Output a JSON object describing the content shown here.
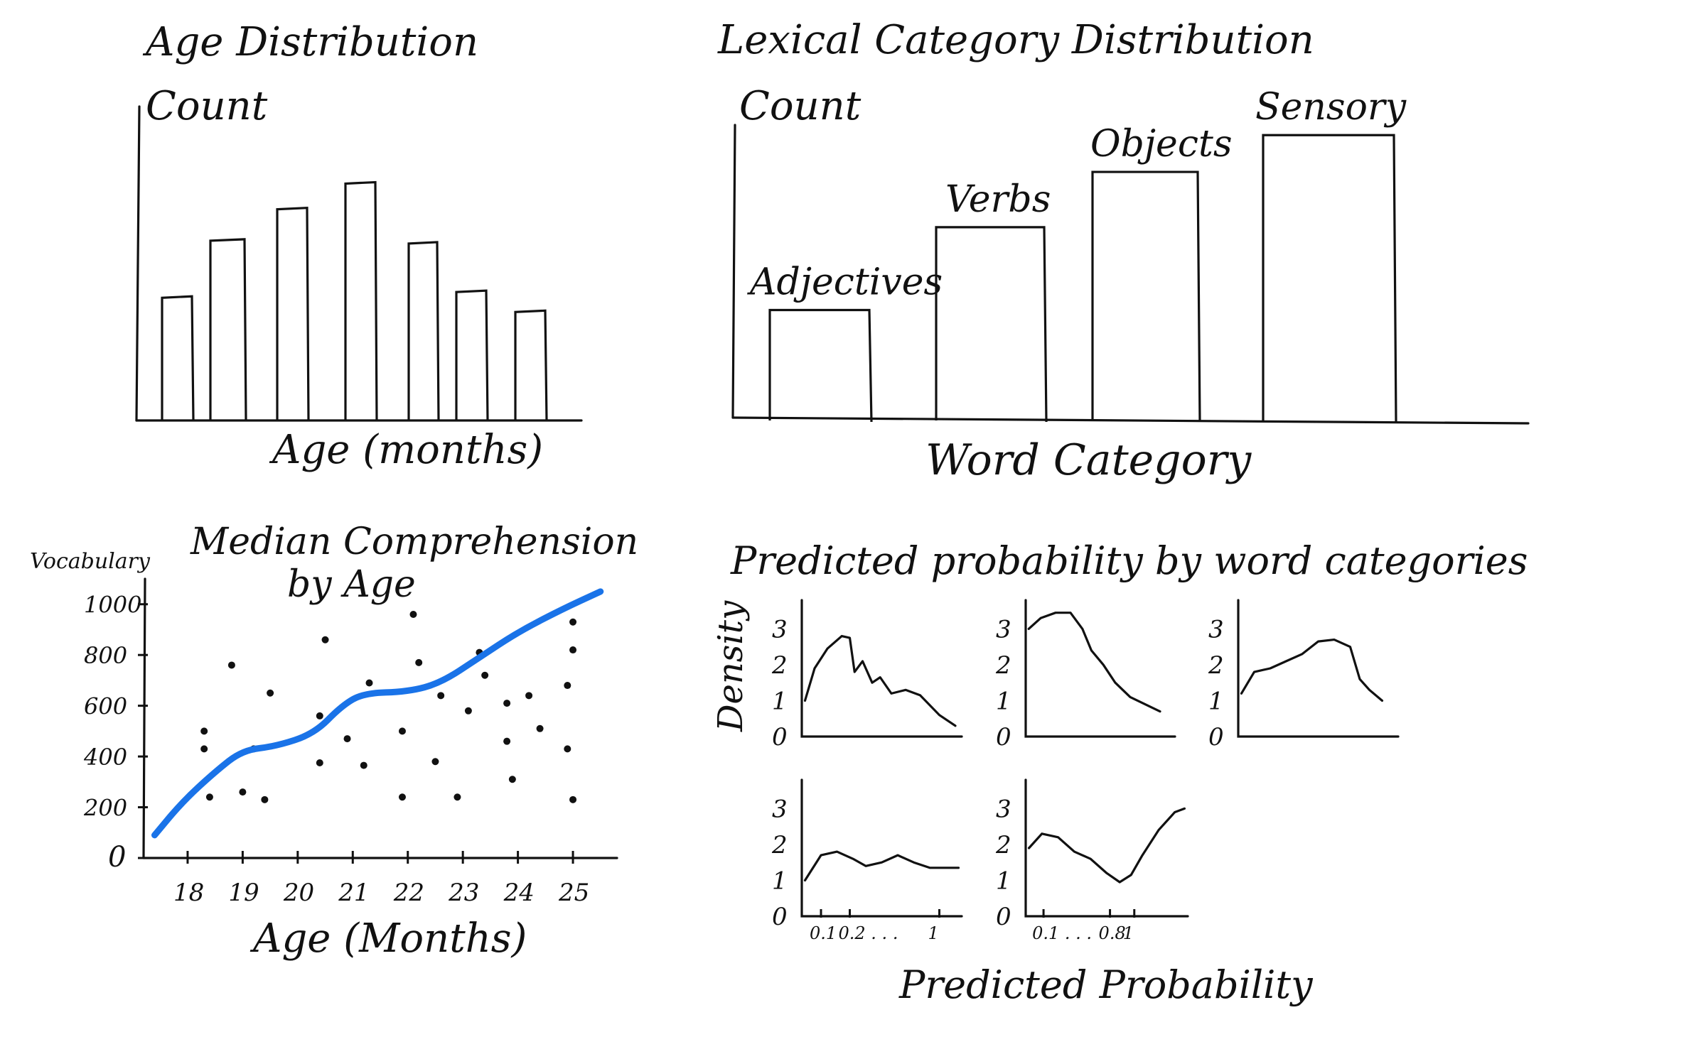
{
  "colors": {
    "ink": "#111111",
    "trend": "#1a73e8"
  },
  "chart_data": [
    {
      "id": "age",
      "type": "bar",
      "title": "Age Distribution",
      "ylabel": "Count",
      "xlabel": "Age (months)",
      "categories": [
        "",
        "",
        "",
        "",
        "",
        "",
        ""
      ],
      "values": [
        43,
        63,
        74,
        83,
        62,
        45,
        38
      ],
      "ylim": [
        0,
        110
      ]
    },
    {
      "id": "lexical",
      "type": "bar",
      "title": "Lexical Category Distribution",
      "ylabel": "Count",
      "xlabel": "Word Category",
      "categories": [
        "Adjectives",
        "Verbs",
        "Objects",
        "Sensory"
      ],
      "values": [
        36,
        63,
        81,
        93
      ],
      "ylim": [
        0,
        100
      ]
    },
    {
      "id": "median",
      "type": "scatter",
      "title": "Median Comprehension\nby Age",
      "ylabel": "Vocabulary",
      "xlabel": "Age (Months)",
      "xticks": [
        18,
        19,
        20,
        21,
        22,
        23,
        24,
        25
      ],
      "yticks": [
        0,
        200,
        400,
        600,
        800,
        1000
      ],
      "xlim": [
        17.2,
        25.8
      ],
      "ylim": [
        0,
        1100
      ],
      "points": [
        [
          18.3,
          430
        ],
        [
          18.3,
          500
        ],
        [
          18.4,
          240
        ],
        [
          18.8,
          760
        ],
        [
          19.0,
          260
        ],
        [
          19.2,
          430
        ],
        [
          19.4,
          230
        ],
        [
          19.5,
          650
        ],
        [
          20.4,
          375
        ],
        [
          20.4,
          560
        ],
        [
          20.5,
          860
        ],
        [
          20.9,
          470
        ],
        [
          21.2,
          365
        ],
        [
          21.3,
          690
        ],
        [
          21.9,
          240
        ],
        [
          21.9,
          500
        ],
        [
          22.1,
          960
        ],
        [
          22.2,
          770
        ],
        [
          22.5,
          380
        ],
        [
          22.6,
          640
        ],
        [
          22.9,
          240
        ],
        [
          23.1,
          580
        ],
        [
          23.3,
          810
        ],
        [
          23.4,
          720
        ],
        [
          23.8,
          610
        ],
        [
          23.8,
          460
        ],
        [
          23.9,
          310
        ],
        [
          24.2,
          640
        ],
        [
          24.4,
          510
        ],
        [
          24.9,
          430
        ],
        [
          25.0,
          230
        ],
        [
          24.9,
          680
        ],
        [
          25.0,
          820
        ],
        [
          25.0,
          930
        ]
      ],
      "trend": [
        [
          17.4,
          90
        ],
        [
          17.9,
          220
        ],
        [
          18.5,
          340
        ],
        [
          19.0,
          425
        ],
        [
          19.6,
          440
        ],
        [
          20.3,
          490
        ],
        [
          20.8,
          600
        ],
        [
          21.2,
          650
        ],
        [
          22.0,
          655
        ],
        [
          22.6,
          690
        ],
        [
          23.3,
          790
        ],
        [
          24.0,
          890
        ],
        [
          24.8,
          980
        ],
        [
          25.5,
          1050
        ]
      ]
    },
    {
      "id": "predicted",
      "type": "line",
      "title": "Predicted probability by word categories",
      "ylabel": "Density",
      "xlabel": "Predicted Probability",
      "yticks": [
        "0",
        "1",
        "2",
        "3"
      ],
      "xticks_panel4": [
        "0.1",
        "0.2 . . .",
        "1"
      ],
      "xticks_panel5": [
        "0.1 . . .",
        "0.8",
        "1"
      ],
      "ylim": [
        0,
        3.8
      ],
      "xlim": [
        0,
        1
      ],
      "series": [
        {
          "values": [
            [
              0.02,
              1.0
            ],
            [
              0.08,
              1.9
            ],
            [
              0.16,
              2.45
            ],
            [
              0.25,
              2.8
            ],
            [
              0.3,
              2.75
            ],
            [
              0.33,
              1.8
            ],
            [
              0.38,
              2.1
            ],
            [
              0.44,
              1.5
            ],
            [
              0.49,
              1.65
            ],
            [
              0.56,
              1.2
            ],
            [
              0.65,
              1.3
            ],
            [
              0.74,
              1.15
            ],
            [
              0.86,
              0.6
            ],
            [
              0.96,
              0.3
            ]
          ]
        },
        {
          "values": [
            [
              0.02,
              3.0
            ],
            [
              0.1,
              3.3
            ],
            [
              0.2,
              3.45
            ],
            [
              0.3,
              3.45
            ],
            [
              0.38,
              3.0
            ],
            [
              0.44,
              2.4
            ],
            [
              0.52,
              2.0
            ],
            [
              0.6,
              1.5
            ],
            [
              0.7,
              1.1
            ],
            [
              0.8,
              0.9
            ],
            [
              0.9,
              0.7
            ]
          ]
        },
        {
          "values": [
            [
              0.02,
              1.2
            ],
            [
              0.1,
              1.8
            ],
            [
              0.2,
              1.9
            ],
            [
              0.3,
              2.1
            ],
            [
              0.4,
              2.3
            ],
            [
              0.5,
              2.65
            ],
            [
              0.6,
              2.7
            ],
            [
              0.7,
              2.5
            ],
            [
              0.76,
              1.6
            ],
            [
              0.82,
              1.3
            ],
            [
              0.9,
              1.0
            ]
          ]
        },
        {
          "values": [
            [
              0.02,
              1.0
            ],
            [
              0.12,
              1.7
            ],
            [
              0.22,
              1.8
            ],
            [
              0.32,
              1.6
            ],
            [
              0.4,
              1.4
            ],
            [
              0.5,
              1.5
            ],
            [
              0.6,
              1.7
            ],
            [
              0.7,
              1.5
            ],
            [
              0.8,
              1.35
            ],
            [
              0.9,
              1.35
            ],
            [
              0.98,
              1.35
            ]
          ]
        },
        {
          "values": [
            [
              0.02,
              1.9
            ],
            [
              0.1,
              2.3
            ],
            [
              0.2,
              2.2
            ],
            [
              0.3,
              1.8
            ],
            [
              0.4,
              1.6
            ],
            [
              0.5,
              1.2
            ],
            [
              0.58,
              0.95
            ],
            [
              0.65,
              1.15
            ],
            [
              0.72,
              1.7
            ],
            [
              0.82,
              2.4
            ],
            [
              0.92,
              2.9
            ],
            [
              0.98,
              3.0
            ]
          ]
        }
      ]
    }
  ]
}
